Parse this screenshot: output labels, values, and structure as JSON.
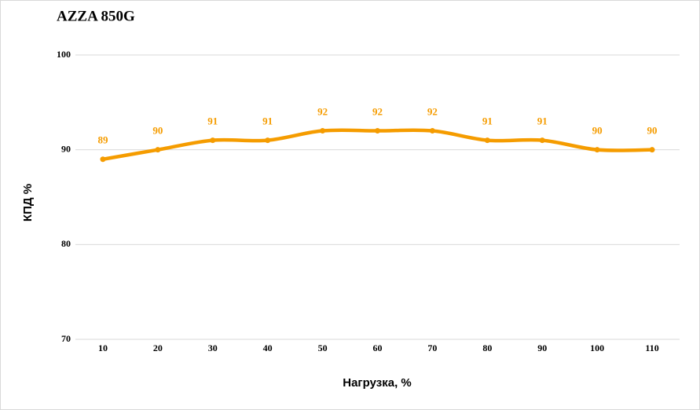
{
  "chart_data": {
    "type": "line",
    "title": "AZZA 850G",
    "x_label": "Нагрузка, %",
    "y_label": "КПД %",
    "categories": [
      "10",
      "20",
      "30",
      "40",
      "50",
      "60",
      "70",
      "80",
      "90",
      "100",
      "110"
    ],
    "series": [
      {
        "name": "AZZA 850G",
        "color": "#f59c00",
        "values": [
          89,
          90,
          91,
          91,
          92,
          92,
          92,
          91,
          91,
          90,
          90
        ]
      }
    ],
    "ylim": [
      70,
      100
    ],
    "yticks": [
      70,
      80,
      90,
      100
    ],
    "grid": true
  }
}
